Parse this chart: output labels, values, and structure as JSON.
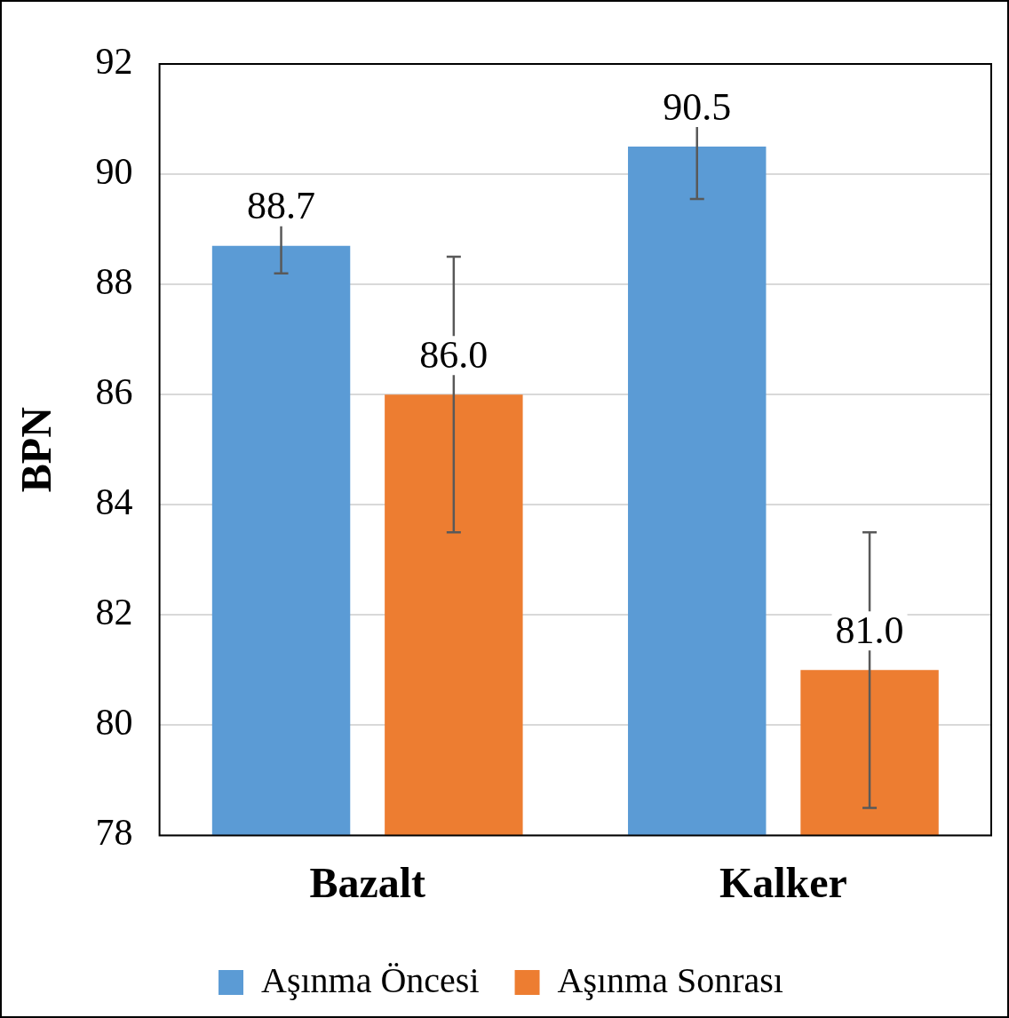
{
  "chart_data": {
    "type": "bar",
    "ylabel": "BPN",
    "categories": [
      "Bazalt",
      "Kalker"
    ],
    "series": [
      {
        "name": "Aşınma Öncesi",
        "color": "#5b9bd5",
        "values": [
          88.7,
          90.5
        ],
        "errors": [
          0.5,
          0.95
        ],
        "value_labels": [
          "88.7",
          "90.5"
        ]
      },
      {
        "name": "Aşınma Sonrası",
        "color": "#ed7d31",
        "values": [
          86.0,
          81.0
        ],
        "errors": [
          2.5,
          2.5
        ],
        "value_labels": [
          "86.0",
          "81.0"
        ]
      }
    ],
    "ylim": [
      78,
      92
    ],
    "yticks": [
      78,
      80,
      82,
      84,
      86,
      88,
      90,
      92
    ],
    "grid": "y",
    "legend": "bottom"
  }
}
